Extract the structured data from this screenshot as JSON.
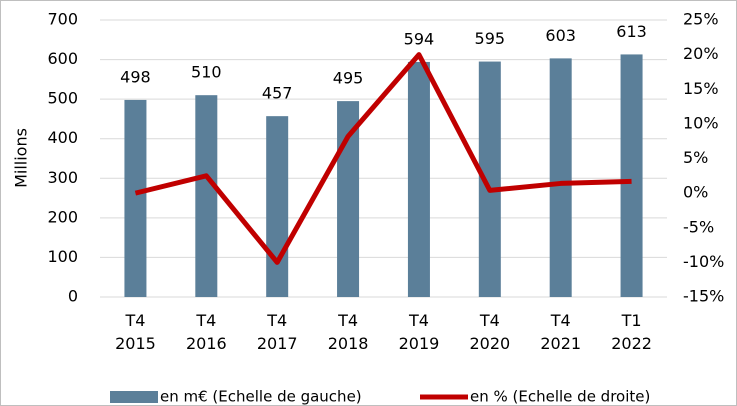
{
  "chart_data": {
    "type": "bar-line",
    "y_label": "Millions",
    "categories": [
      "T4 2015",
      "T4 2016",
      "T4 2017",
      "T4 2018",
      "T4 2019",
      "T4 2020",
      "T4 2021",
      "T1 2022"
    ],
    "series": [
      {
        "name": "en m€ (Echelle de gauche)",
        "type": "bar",
        "color": "#5b7f99",
        "values": [
          498,
          510,
          457,
          495,
          594,
          595,
          603,
          613
        ]
      },
      {
        "name": "en % (Echelle de droite)",
        "type": "line",
        "axis": "y2",
        "color": "#c00000",
        "values": [
          0,
          2.5,
          -10,
          8.2,
          20,
          0.4,
          1.4,
          1.7
        ]
      }
    ],
    "ylim": [
      0,
      700
    ],
    "yticks": [
      0,
      100,
      200,
      300,
      400,
      500,
      600,
      700
    ],
    "y2lim": [
      -15,
      25
    ],
    "y2ticks": [
      {
        "value": -15,
        "label": "-15%"
      },
      {
        "value": -10,
        "label": "-10%"
      },
      {
        "value": -5,
        "label": "-5%"
      },
      {
        "value": 0,
        "label": "0%"
      },
      {
        "value": 5,
        "label": "5%"
      },
      {
        "value": 10,
        "label": "10%"
      },
      {
        "value": 15,
        "label": "15%"
      },
      {
        "value": 20,
        "label": "20%"
      },
      {
        "value": 25,
        "label": "25%"
      }
    ],
    "grid": true
  }
}
